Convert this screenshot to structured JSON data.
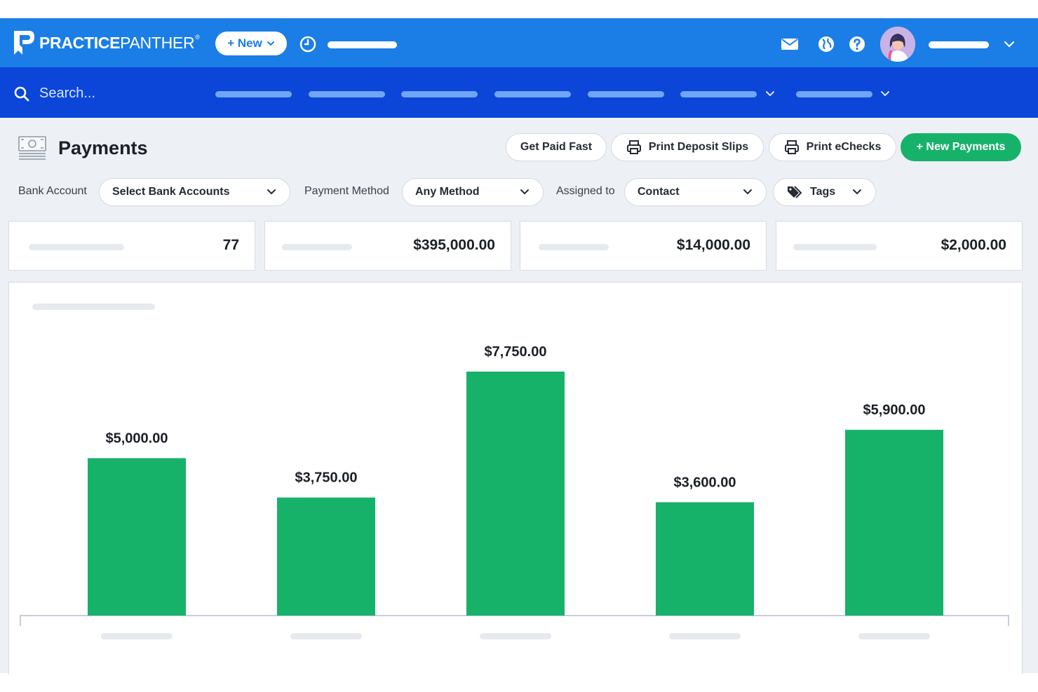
{
  "header": {
    "brand_bold": "PRACTICE",
    "brand_light": "PANTHER",
    "brand_mark": "®",
    "new_button": "+ New",
    "icons": [
      "mail-icon",
      "globe-icon",
      "help-icon"
    ]
  },
  "nav": {
    "search_placeholder": "Search..."
  },
  "page": {
    "title": "Payments",
    "actions": {
      "get_paid_fast": "Get Paid Fast",
      "print_deposit_slips": "Print Deposit Slips",
      "print_echecks": "Print eChecks",
      "new_payments": "+ New Payments"
    },
    "filters": {
      "bank_account_label": "Bank Account",
      "bank_account_value": "Select Bank Accounts",
      "payment_method_label": "Payment Method",
      "payment_method_value": "Any Method",
      "assigned_to_label": "Assigned to",
      "assigned_to_value": "Contact",
      "tags_value": "Tags"
    },
    "stats": [
      "77",
      "$395,000.00",
      "$14,000.00",
      "$2,000.00"
    ]
  },
  "colors": {
    "header_blue": "#1a7ee6",
    "nav_blue": "#0b46d9",
    "accent_green": "#17b26a"
  },
  "chart_data": {
    "type": "bar",
    "categories": [
      "",
      "",
      "",
      "",
      ""
    ],
    "values": [
      5000,
      3750,
      7750,
      3600,
      5900
    ],
    "labels": [
      "$5,000.00",
      "$3,750.00",
      "$7,750.00",
      "$3,600.00",
      "$5,900.00"
    ],
    "color": "#17b26a",
    "ylim": [
      0,
      10000
    ],
    "grid": false
  }
}
